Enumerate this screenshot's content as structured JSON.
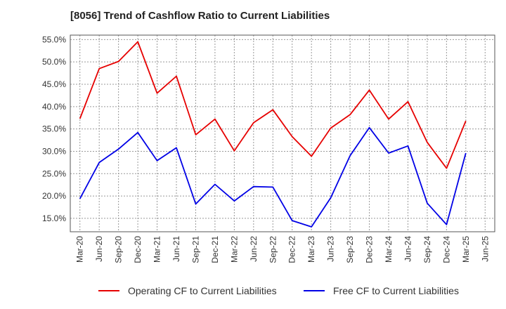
{
  "chart_data": {
    "type": "line",
    "title": "[8056]  Trend of Cashflow Ratio to Current Liabilities",
    "xlabel": "",
    "ylabel": "",
    "x_ticks": [
      "Mar-20",
      "Jun-20",
      "Sep-20",
      "Dec-20",
      "Mar-21",
      "Jun-21",
      "Sep-21",
      "Dec-21",
      "Mar-22",
      "Jun-22",
      "Sep-22",
      "Dec-22",
      "Mar-23",
      "Jun-23",
      "Sep-23",
      "Dec-23",
      "Mar-24",
      "Jun-24",
      "Sep-24",
      "Dec-24",
      "Mar-25",
      "Jun-25"
    ],
    "categories": [
      "Mar-20",
      "Jun-20",
      "Sep-20",
      "Dec-20",
      "Mar-21",
      "Jun-21",
      "Sep-21",
      "Dec-21",
      "Mar-22",
      "Jun-22",
      "Sep-22",
      "Dec-22",
      "Mar-23",
      "Jun-23",
      "Sep-23",
      "Dec-23",
      "Mar-24",
      "Jun-24",
      "Sep-24",
      "Dec-24",
      "Mar-25"
    ],
    "y_ticks": [
      "15.0%",
      "20.0%",
      "25.0%",
      "30.0%",
      "35.0%",
      "40.0%",
      "45.0%",
      "50.0%",
      "55.0%"
    ],
    "ylim": [
      12.0,
      56.0
    ],
    "grid": true,
    "legend_position": "bottom",
    "series": [
      {
        "name": "Operating CF to Current Liabilities",
        "color": "#e60000",
        "values": [
          37.3,
          48.5,
          50.1,
          54.5,
          43.0,
          46.8,
          33.7,
          37.2,
          30.1,
          36.4,
          39.3,
          33.3,
          28.9,
          35.2,
          38.2,
          43.7,
          37.2,
          41.1,
          32.0,
          26.2,
          36.8
        ]
      },
      {
        "name": "Free CF to Current Liabilities",
        "color": "#0000e6",
        "values": [
          19.4,
          27.5,
          30.5,
          34.2,
          27.9,
          30.8,
          18.2,
          22.6,
          18.9,
          22.1,
          22.0,
          14.5,
          13.1,
          19.6,
          29.0,
          35.3,
          29.6,
          31.2,
          18.4,
          13.6,
          29.6
        ]
      }
    ]
  }
}
